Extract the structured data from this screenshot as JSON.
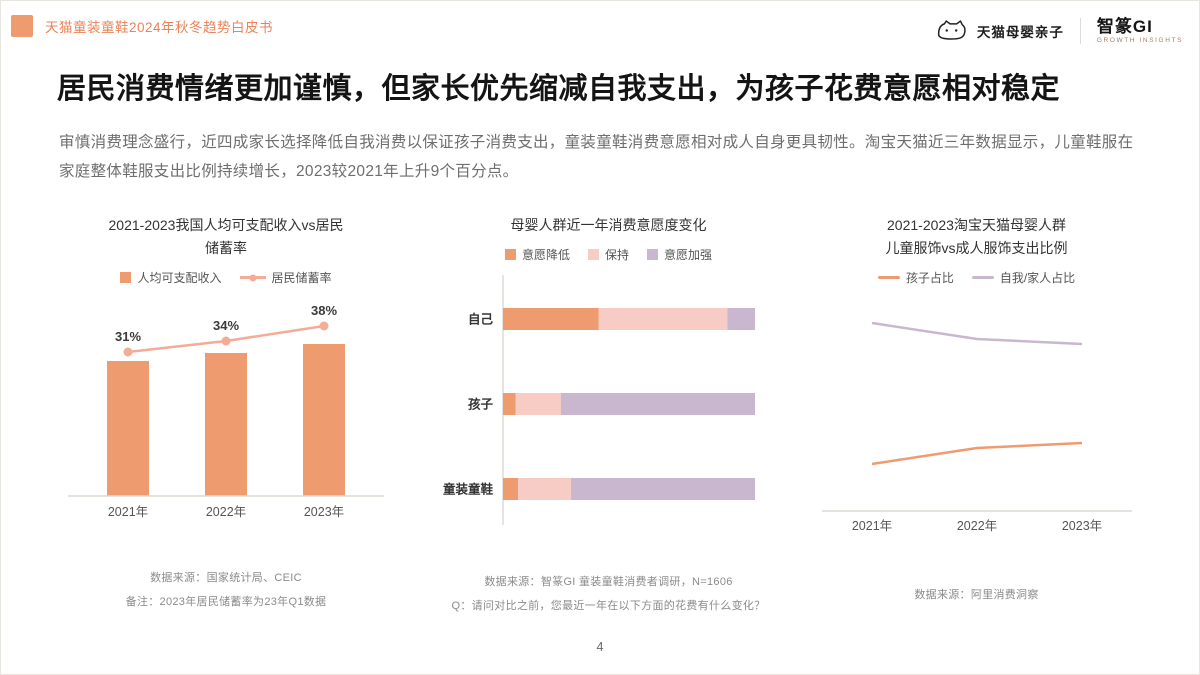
{
  "colors": {
    "accent": "#EE9B70",
    "accent_text": "#E8845B",
    "line_pink": "#F3AC95",
    "axis": "#DEDAD4",
    "title_text": "#141414",
    "body_text": "#6E6E6E",
    "footnote_text": "#8B8B8B"
  },
  "header": {
    "doc_title": "天猫童装童鞋2024年秋冬趋势白皮书",
    "logo_tmall": "天猫母婴亲子",
    "logo_gi": "智篆GI",
    "logo_gi_sub": "GROWTH INSIGHTS"
  },
  "main": {
    "title": "居民消费情绪更加谨慎，但家长优先缩减自我支出，为孩子花费意愿相对稳定",
    "paragraph": "审慎消费理念盛行，近四成家长选择降低自我消费以保证孩子消费支出，童装童鞋消费意愿相对成人自身更具韧性。淘宝天猫近三年数据显示，儿童鞋服在家庭整体鞋服支出比例持续增长，2023较2021年上升9个百分点。"
  },
  "footer": {
    "page_number": "4"
  },
  "chart_data": [
    {
      "type": "bar",
      "subtype": "bar-with-line-overlay",
      "title": "2021-2023我国人均可支配收入vs居民储蓄率",
      "title_lines": [
        "2021-2023我国人均可支配收入vs居民",
        "储蓄率"
      ],
      "categories": [
        "2021年",
        "2022年",
        "2023年"
      ],
      "series": [
        {
          "name": "人均可支配收入",
          "type": "bar",
          "values": [
            89,
            94,
            100
          ],
          "value_note": "柱高相对值估算，图中未标注数值"
        },
        {
          "name": "居民储蓄率",
          "type": "line",
          "values": [
            31,
            34,
            38
          ],
          "labels": [
            "31%",
            "34%",
            "38%"
          ]
        }
      ],
      "legend_position": "top",
      "source": "数据来源：国家统计局、CEIC",
      "note": "备注：2023年居民储蓄率为23年Q1数据"
    },
    {
      "type": "bar",
      "subtype": "horizontal-stacked-100pct",
      "title": "母婴人群近一年消费意愿度变化",
      "categories": [
        "自己",
        "孩子",
        "童装童鞋"
      ],
      "colors": [
        "#EE9B70",
        "#F6CCC4",
        "#C8B7CF"
      ],
      "series": [
        {
          "name": "意愿降低",
          "values": [
            38,
            5,
            6
          ]
        },
        {
          "name": "保持",
          "values": [
            51,
            18,
            21
          ]
        },
        {
          "name": "意愿加强",
          "values": [
            11,
            77,
            73
          ]
        }
      ],
      "value_note": "分段比例为目测估算，图中未标注数值",
      "legend_position": "top",
      "source": "数据来源：智篆GI 童装童鞋消费者调研，N=1606",
      "note": "Q：请问对比之前，您最近一年在以下方面的花费有什么变化？"
    },
    {
      "type": "line",
      "title": "2021-2023淘宝天猫母婴人群儿童服饰vs成人服饰支出比例",
      "title_lines": [
        "2021-2023淘宝天猫母婴人群",
        "儿童服饰vs成人服饰支出比例"
      ],
      "categories": [
        "2021年",
        "2022年",
        "2023年"
      ],
      "series": [
        {
          "name": "孩子占比",
          "color": "#EE9B70",
          "values": [
            20,
            27,
            29
          ]
        },
        {
          "name": "自我/家人占比",
          "color": "#C8B7CF",
          "values": [
            80,
            73,
            71
          ]
        }
      ],
      "value_note": "数值为目测估算（正文提及2023较2021上升9个百分点）",
      "legend_position": "top",
      "source": "数据来源：阿里消费洞察"
    }
  ]
}
